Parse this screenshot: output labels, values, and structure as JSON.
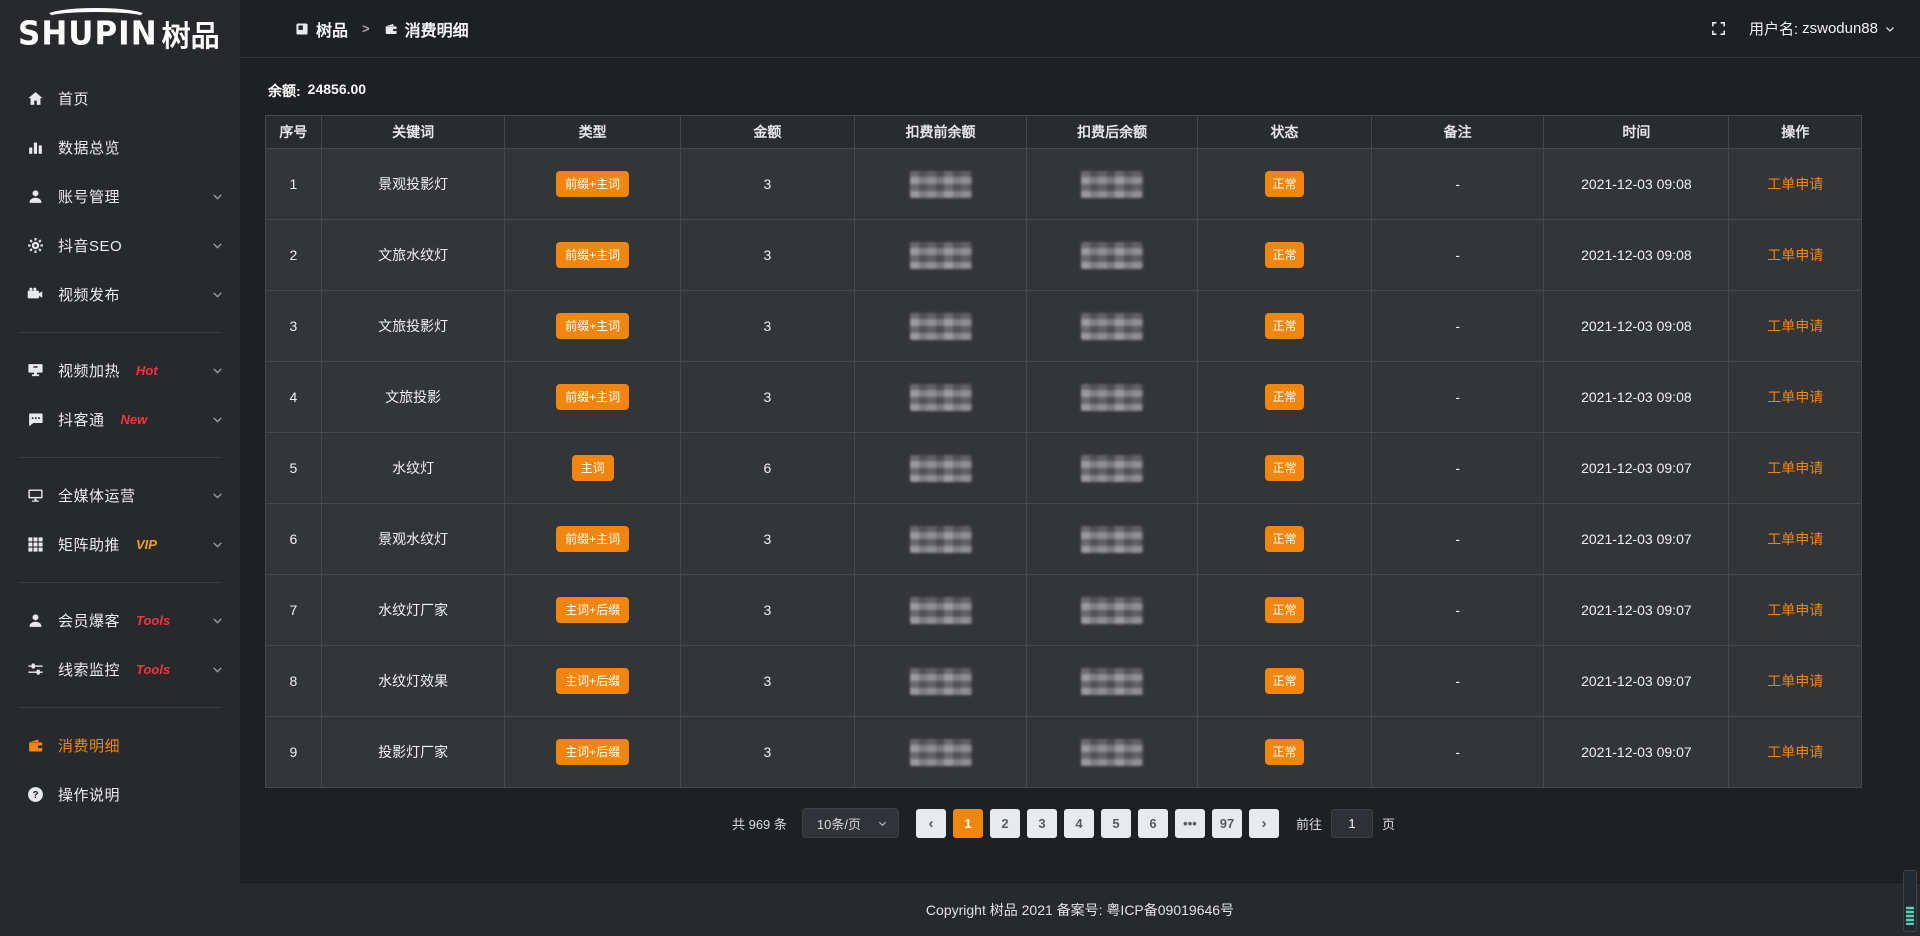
{
  "brand": {
    "logo_text": "SHUPIN",
    "logo_cn": "树品"
  },
  "topbar": {
    "breadcrumb": [
      {
        "icon": "app-icon",
        "label": "树品"
      },
      {
        "icon": "wallet-icon",
        "label": "消费明细"
      }
    ],
    "separator": ">",
    "user_prefix": "用户名:",
    "username": "zswodun88"
  },
  "sidebar": {
    "groups": [
      {
        "items": [
          {
            "key": "home",
            "icon": "home-icon",
            "label": "首页"
          },
          {
            "key": "data-overview",
            "icon": "bar-chart-icon",
            "label": "数据总览"
          },
          {
            "key": "account-management",
            "icon": "user-icon",
            "label": "账号管理",
            "chevron": true
          },
          {
            "key": "douyin-seo",
            "icon": "gear-icon",
            "label": "抖音SEO",
            "chevron": true
          },
          {
            "key": "video-publish",
            "icon": "video-icon",
            "label": "视频发布",
            "chevron": true
          }
        ]
      },
      {
        "items": [
          {
            "key": "video-heat",
            "icon": "screen-heat-icon",
            "label": "视频加热",
            "badge": "Hot",
            "badge_color": "#f5343c",
            "chevron": true
          },
          {
            "key": "douketong",
            "icon": "chat-icon",
            "label": "抖客通",
            "badge": "New",
            "badge_color": "#f5343c",
            "chevron": true
          }
        ]
      },
      {
        "items": [
          {
            "key": "media-operation",
            "icon": "monitor-icon",
            "label": "全媒体运营",
            "chevron": true
          },
          {
            "key": "matrix-boost",
            "icon": "grid-icon",
            "label": "矩阵助推",
            "badge": "VIP",
            "badge_color": "#efa21d",
            "chevron": true
          }
        ]
      },
      {
        "items": [
          {
            "key": "member-baoke",
            "icon": "member-icon",
            "label": "会员爆客",
            "badge": "Tools",
            "badge_color": "#f5343c",
            "chevron": true
          },
          {
            "key": "clue-monitor",
            "icon": "sliders-icon",
            "label": "线索监控",
            "badge": "Tools",
            "badge_color": "#f5343c",
            "chevron": true
          }
        ]
      },
      {
        "items": [
          {
            "key": "consume-detail",
            "icon": "wallet-icon",
            "label": "消费明细",
            "active": true
          },
          {
            "key": "operation-guide",
            "icon": "question-icon",
            "label": "操作说明"
          }
        ]
      }
    ]
  },
  "balance": {
    "label": "余额:",
    "value": "24856.00"
  },
  "table": {
    "columns": [
      "序号",
      "关键词",
      "类型",
      "金额",
      "扣费前余额",
      "扣费后余额",
      "状态",
      "备注",
      "时间",
      "操作"
    ],
    "col_widths": [
      "3.5%",
      "11.5%",
      "11%",
      "10.9%",
      "10.8%",
      "10.7%",
      "10.9%",
      "10.8%",
      "11.6%",
      "8.3%"
    ],
    "rows": [
      {
        "index": "1",
        "keyword": "景观投影灯",
        "type": "前缀+主词",
        "amount": "3",
        "status": "正常",
        "remark": "-",
        "time": "2021-12-03 09:08",
        "action": "工单申请"
      },
      {
        "index": "2",
        "keyword": "文旅水纹灯",
        "type": "前缀+主词",
        "amount": "3",
        "status": "正常",
        "remark": "-",
        "time": "2021-12-03 09:08",
        "action": "工单申请"
      },
      {
        "index": "3",
        "keyword": "文旅投影灯",
        "type": "前缀+主词",
        "amount": "3",
        "status": "正常",
        "remark": "-",
        "time": "2021-12-03 09:08",
        "action": "工单申请"
      },
      {
        "index": "4",
        "keyword": "文旅投影",
        "type": "前缀+主词",
        "amount": "3",
        "status": "正常",
        "remark": "-",
        "time": "2021-12-03 09:08",
        "action": "工单申请"
      },
      {
        "index": "5",
        "keyword": "水纹灯",
        "type": "主词",
        "amount": "6",
        "status": "正常",
        "remark": "-",
        "time": "2021-12-03 09:07",
        "action": "工单申请"
      },
      {
        "index": "6",
        "keyword": "景观水纹灯",
        "type": "前缀+主词",
        "amount": "3",
        "status": "正常",
        "remark": "-",
        "time": "2021-12-03 09:07",
        "action": "工单申请"
      },
      {
        "index": "7",
        "keyword": "水纹灯厂家",
        "type": "主词+后缀",
        "amount": "3",
        "status": "正常",
        "remark": "-",
        "time": "2021-12-03 09:07",
        "action": "工单申请"
      },
      {
        "index": "8",
        "keyword": "水纹灯效果",
        "type": "主词+后缀",
        "amount": "3",
        "status": "正常",
        "remark": "-",
        "time": "2021-12-03 09:07",
        "action": "工单申请"
      },
      {
        "index": "9",
        "keyword": "投影灯厂家",
        "type": "主词+后缀",
        "amount": "3",
        "status": "正常",
        "remark": "-",
        "time": "2021-12-03 09:07",
        "action": "工单申请"
      }
    ]
  },
  "pagination": {
    "total": "共 969 条",
    "page_size": "10条/页",
    "prev": "‹",
    "next": "›",
    "pages": [
      "1",
      "2",
      "3",
      "4",
      "5",
      "6",
      "•••",
      "97"
    ],
    "active_page": "1",
    "goto_label": "前往",
    "goto_value": "1",
    "goto_unit": "页"
  },
  "footer": {
    "copyright": "Copyright 树品 2021 备案号: 粤ICP备09019646号"
  },
  "colors": {
    "accent_orange": "#f0860f",
    "badge_red": "#f5343c",
    "badge_gold": "#efa21d",
    "teal_scrollbar": "#5ecfb4"
  }
}
